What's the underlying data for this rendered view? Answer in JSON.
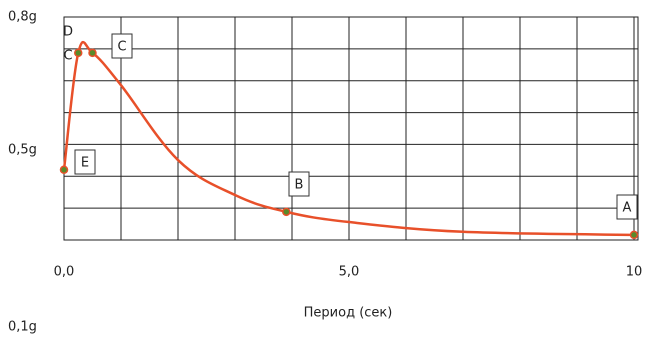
{
  "chart_data": {
    "type": "line",
    "x_label": "Период (сек)",
    "x": [
      0,
      0.25,
      0.5,
      1,
      2,
      3,
      3.9,
      5,
      7,
      10
    ],
    "series": [
      {
        "color": "#e8502a",
        "values": [
          0.455,
          0.719,
          0.719,
          0.646,
          0.477,
          0.398,
          0.36,
          0.337,
          0.315,
          0.308
        ]
      }
    ],
    "xlim": [
      0,
      10
    ],
    "xticks": [
      {
        "value": 0,
        "label": "0,0"
      },
      {
        "value": 5,
        "label": "5,0"
      },
      10
    ],
    "ylim": [
      0.1,
      0.8
    ],
    "yticks": [
      {
        "value": 0.8,
        "label": "0,8g"
      },
      {
        "value": 0.5,
        "label": "0,5g"
      },
      {
        "value": 0.1,
        "label": "0,1g"
      }
    ],
    "annotations": [
      "D",
      "C",
      "C",
      "E",
      "B",
      "A"
    ],
    "grid": true
  }
}
